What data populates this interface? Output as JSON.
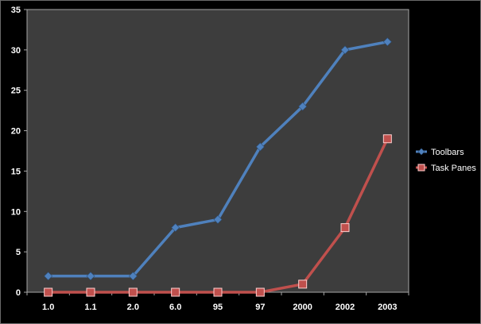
{
  "chart_data": {
    "type": "line",
    "categories": [
      "1.0",
      "1.1",
      "2.0",
      "6.0",
      "95",
      "97",
      "2000",
      "2002",
      "2003"
    ],
    "series": [
      {
        "name": "Toolbars",
        "values": [
          2,
          2,
          2,
          8,
          9,
          18,
          23,
          30,
          31
        ],
        "color": "#4f81bd",
        "marker": "diamond"
      },
      {
        "name": "Task Panes",
        "values": [
          0,
          0,
          0,
          0,
          0,
          0,
          1,
          8,
          19
        ],
        "color": "#c0504d",
        "marker": "square"
      }
    ],
    "y_ticks": [
      "0",
      "5",
      "10",
      "15",
      "20",
      "25",
      "30",
      "35"
    ],
    "ylim": [
      0,
      35
    ],
    "grid": false,
    "legend_position": "right",
    "colors": {
      "background": "#000000",
      "plot_area": "#3d3d3d",
      "text": "#ffffff",
      "axis": "#a6a6a6"
    }
  }
}
